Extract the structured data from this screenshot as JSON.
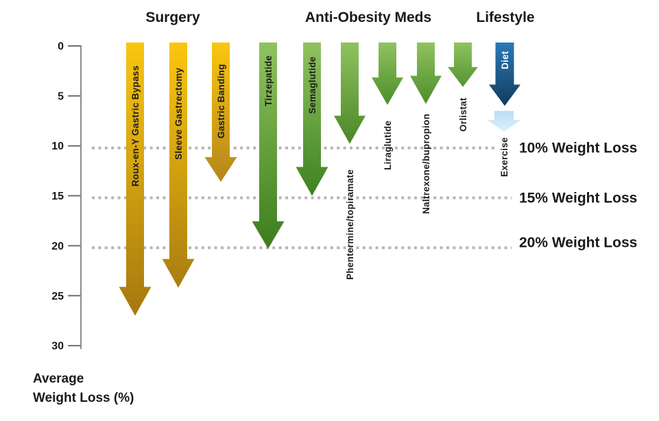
{
  "page": {
    "background": "#ffffff"
  },
  "chart_data": {
    "type": "bar",
    "subtype": "downward-arrow-chart",
    "title": "",
    "ylabel": "Average Weight Loss (%)",
    "ylabel_lines": [
      "Average",
      "Weight Loss (%)"
    ],
    "ylim": [
      0,
      30
    ],
    "y_ticks": [
      0,
      5,
      10,
      15,
      20,
      25,
      30
    ],
    "grid": "dotted-horizontal-reference-lines",
    "legend_position": "none",
    "groups": [
      {
        "label": "Surgery"
      },
      {
        "label": "Anti-Obesity Meds"
      },
      {
        "label": "Lifestyle"
      }
    ],
    "reference_lines": [
      {
        "value": 10,
        "label": "10% Weight Loss"
      },
      {
        "value": 15,
        "label": "15% Weight Loss"
      },
      {
        "value": 20,
        "label": "20% Weight Loss"
      }
    ],
    "series": [
      {
        "name": "Roux-en-Y Gastric Bypass",
        "group": "Surgery",
        "value": 27.0,
        "start": 0,
        "label_placement": "inside",
        "color_top": "#FBC60F",
        "color_tip": "#A6780F",
        "label_color": "#1c1c1c"
      },
      {
        "name": "Sleeve Gastrectomy",
        "group": "Surgery",
        "value": 24.2,
        "start": 0,
        "label_placement": "inside",
        "color_top": "#FBC60F",
        "color_tip": "#AA7D10",
        "label_color": "#1c1c1c"
      },
      {
        "name": "Gastric Banding",
        "group": "Surgery",
        "value": 13.6,
        "start": 0,
        "label_placement": "inside",
        "color_top": "#FBC60F",
        "color_tip": "#B5861A",
        "label_color": "#1c1c1c"
      },
      {
        "name": "Tirzepatide",
        "group": "Anti-Obesity Meds",
        "value": 20.3,
        "start": 0,
        "label_placement": "inside",
        "color_top": "#90C35F",
        "color_tip": "#3C7D1D",
        "label_color": "#1c1c1c"
      },
      {
        "name": "Semaglutide",
        "group": "Anti-Obesity Meds",
        "value": 15.0,
        "start": 0,
        "label_placement": "inside",
        "color_top": "#90C35F",
        "color_tip": "#3E8220",
        "label_color": "#1c1c1c"
      },
      {
        "name": "Phentermine/topiramate",
        "group": "Anti-Obesity Meds",
        "value": 9.8,
        "start": 0,
        "label_placement": "below",
        "color_top": "#90C35F",
        "color_tip": "#4A8727",
        "label_color": "#1c1c1c"
      },
      {
        "name": "Liraglutide",
        "group": "Anti-Obesity Meds",
        "value": 5.9,
        "start": 0,
        "label_placement": "below",
        "color_top": "#90C35F",
        "color_tip": "#4C8D2B",
        "label_color": "#1c1c1c"
      },
      {
        "name": "Naltrexone/bupropion",
        "group": "Anti-Obesity Meds",
        "value": 5.8,
        "start": 0,
        "label_placement": "below",
        "color_top": "#90C35F",
        "color_tip": "#4C8D2B",
        "label_color": "#1c1c1c"
      },
      {
        "name": "Orlistat",
        "group": "Anti-Obesity Meds",
        "value": 4.1,
        "start": 0,
        "label_placement": "below",
        "color_top": "#90C35F",
        "color_tip": "#529331",
        "label_color": "#1c1c1c"
      },
      {
        "name": "Diet",
        "group": "Lifestyle",
        "value": 6.0,
        "start": 0,
        "label_placement": "inside",
        "color_top": "#2A79B8",
        "color_tip": "#123C5B",
        "label_color": "#ffffff"
      },
      {
        "name": "Exercise",
        "group": "Lifestyle",
        "value": 8.6,
        "start": 6.5,
        "label_placement": "below",
        "color_top": "#BBDEF6",
        "color_tip": "#DCEFFC",
        "label_color": "#1c1c1c"
      }
    ],
    "colors": {
      "reference_line": "#B9B5B0",
      "axis": "#8C8C8C",
      "tick": "#6E6E6E",
      "text": "#1A1A1A"
    }
  }
}
